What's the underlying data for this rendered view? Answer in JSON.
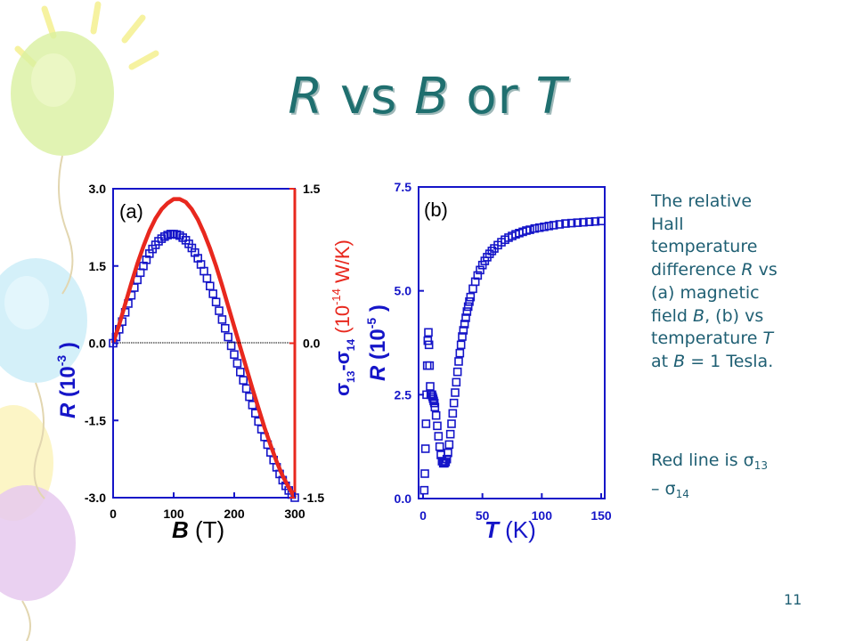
{
  "title": {
    "part1": "R",
    "part2": " vs ",
    "part3": "B",
    "part4": " or ",
    "part5": "T"
  },
  "description": {
    "line1": "The relative",
    "line2": "Hall",
    "line3": "temperature",
    "line4_pre": "difference ",
    "line4_var": "R",
    "line4_post": " vs",
    "line5": "(a) magnetic",
    "line6_pre": "field ",
    "line6_var": "B",
    "line6_post": ", (b) vs",
    "line7_pre": "temperature ",
    "line7_var": "T",
    "line8_pre": "at ",
    "line8_var": "B",
    "line8_post": " = 1 Tesla."
  },
  "note": {
    "pre": "Red line is σ",
    "sub1": "13",
    "mid": "– σ",
    "sub2": "14"
  },
  "page_number": "11",
  "colors": {
    "title": "#1f6f6f",
    "text": "#1f5f73",
    "blue": "#1515c8",
    "red": "#e8281e"
  },
  "chart_data": [
    {
      "type": "scatter",
      "panel_label": "(a)",
      "xlabel_var": "B",
      "xlabel_unit": " (T)",
      "ylabel_var": "R",
      "ylabel_unit": " (10",
      "ylabel_exp": "-3",
      "ylabel_close": " )",
      "y2label_sym": "σ",
      "y2label_sub1": "13",
      "y2label_dash": "-",
      "y2label_sym2": "σ",
      "y2label_sub2": "14",
      "y2label_unit": " (10",
      "y2label_exp": "-14",
      "y2label_close": " W/K)",
      "xlim": [
        0,
        300
      ],
      "ylim": [
        -3.0,
        3.0
      ],
      "y2lim": [
        -1.5,
        1.5
      ],
      "xticks": [
        "0",
        "100",
        "200",
        "300"
      ],
      "yticks": [
        "3.0",
        "1.5",
        "0.0",
        "-1.5",
        "-3.0"
      ],
      "y2ticks": [
        "1.5",
        "0.0",
        "-1.5"
      ],
      "series": [
        {
          "marker": "open-square",
          "color": "#1515c8",
          "x": [
            0,
            5,
            10,
            15,
            20,
            25,
            30,
            35,
            40,
            45,
            50,
            55,
            60,
            65,
            70,
            75,
            80,
            85,
            90,
            95,
            100,
            105,
            110,
            115,
            120,
            125,
            130,
            135,
            140,
            145,
            150,
            155,
            160,
            165,
            170,
            175,
            180,
            185,
            190,
            195,
            200,
            205,
            210,
            215,
            220,
            225,
            230,
            235,
            240,
            245,
            250,
            255,
            260,
            265,
            270,
            275,
            280,
            285,
            290,
            295,
            300
          ],
          "y": [
            0.0,
            0.12,
            0.27,
            0.42,
            0.6,
            0.77,
            0.93,
            1.08,
            1.23,
            1.37,
            1.5,
            1.62,
            1.74,
            1.83,
            1.91,
            1.98,
            2.03,
            2.07,
            2.1,
            2.12,
            2.12,
            2.11,
            2.09,
            2.05,
            2.0,
            1.93,
            1.85,
            1.76,
            1.65,
            1.53,
            1.4,
            1.26,
            1.11,
            0.96,
            0.8,
            0.63,
            0.46,
            0.29,
            0.12,
            -0.05,
            -0.22,
            -0.39,
            -0.56,
            -0.72,
            -0.88,
            -1.04,
            -1.2,
            -1.36,
            -1.52,
            -1.67,
            -1.82,
            -1.97,
            -2.12,
            -2.27,
            -2.41,
            -2.54,
            -2.66,
            -2.77,
            -2.86,
            -2.94,
            -3.0
          ]
        },
        {
          "marker": "line",
          "color": "#e8281e",
          "axis": "right",
          "x": [
            0,
            10,
            20,
            30,
            40,
            50,
            60,
            70,
            80,
            90,
            100,
            110,
            120,
            130,
            140,
            150,
            160,
            170,
            180,
            190,
            200,
            210,
            220,
            230,
            240,
            250,
            260,
            270,
            280,
            290,
            300
          ],
          "y": [
            0.0,
            0.18,
            0.38,
            0.58,
            0.77,
            0.94,
            1.09,
            1.21,
            1.3,
            1.36,
            1.4,
            1.4,
            1.37,
            1.3,
            1.2,
            1.07,
            0.92,
            0.75,
            0.56,
            0.36,
            0.16,
            -0.04,
            -0.24,
            -0.44,
            -0.63,
            -0.82,
            -0.99,
            -1.15,
            -1.29,
            -1.4,
            -1.5
          ]
        }
      ]
    },
    {
      "type": "scatter",
      "panel_label": "(b)",
      "xlabel_var": "T",
      "xlabel_unit": " (K)",
      "ylabel_var": "R",
      "ylabel_unit": " (10",
      "ylabel_exp": "-5",
      "ylabel_close": " )",
      "xlim": [
        0,
        150
      ],
      "ylim": [
        0.0,
        7.5
      ],
      "xticks": [
        "0",
        "50",
        "100",
        "150"
      ],
      "yticks": [
        "7.5",
        "5.0",
        "2.5",
        "0.0"
      ],
      "series": [
        {
          "marker": "open-square",
          "color": "#1515c8",
          "x": [
            1,
            1.5,
            2,
            2.5,
            3,
            3.5,
            4,
            4.5,
            5,
            5.5,
            6,
            6.5,
            7,
            7.5,
            8,
            8.5,
            9,
            9.5,
            10,
            11,
            12,
            13,
            14,
            15,
            16,
            17,
            18,
            19,
            20,
            21,
            22,
            23,
            24,
            25,
            26,
            27,
            28,
            29,
            30,
            31,
            32,
            33,
            34,
            35,
            36,
            37,
            38,
            39,
            40,
            42,
            44,
            46,
            48,
            50,
            52,
            54,
            56,
            58,
            60,
            63,
            66,
            69,
            72,
            75,
            78,
            81,
            84,
            87,
            90,
            94,
            98,
            102,
            106,
            110,
            115,
            120,
            125,
            130,
            135,
            140,
            145,
            150
          ],
          "y": [
            0.2,
            0.6,
            1.2,
            1.8,
            2.5,
            3.2,
            3.8,
            4.0,
            3.7,
            3.2,
            2.7,
            2.5,
            2.5,
            2.5,
            2.45,
            2.4,
            2.35,
            2.3,
            2.2,
            2.0,
            1.75,
            1.5,
            1.25,
            1.05,
            0.9,
            0.85,
            0.85,
            0.88,
            0.95,
            1.1,
            1.3,
            1.55,
            1.8,
            2.05,
            2.3,
            2.55,
            2.8,
            3.05,
            3.3,
            3.5,
            3.7,
            3.9,
            4.05,
            4.2,
            4.35,
            4.5,
            4.62,
            4.74,
            4.85,
            5.05,
            5.22,
            5.37,
            5.5,
            5.62,
            5.72,
            5.81,
            5.89,
            5.96,
            6.02,
            6.1,
            6.17,
            6.23,
            6.28,
            6.32,
            6.36,
            6.39,
            6.42,
            6.45,
            6.47,
            6.5,
            6.52,
            6.54,
            6.56,
            6.58,
            6.6,
            6.62,
            6.63,
            6.64,
            6.65,
            6.66,
            6.67,
            6.68
          ]
        }
      ]
    }
  ]
}
